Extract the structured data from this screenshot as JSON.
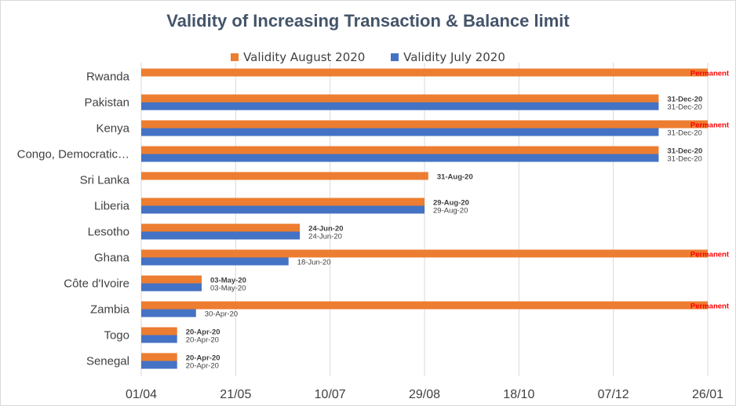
{
  "chart_data": {
    "type": "bar",
    "orientation": "horizontal",
    "title": "Validity of Increasing Transaction & Balance limit",
    "xlabel": "",
    "ylabel": "",
    "categories": [
      "Rwanda",
      "Pakistan",
      "Kenya",
      "Congo, Democratic…",
      "Sri Lanka",
      "Liberia",
      "Lesotho",
      "Ghana",
      "Côte d'Ivoire",
      "Zambia",
      "Togo",
      "Senegal"
    ],
    "x_axis": {
      "type": "date",
      "min": "2020-04-01",
      "max": "2021-01-26",
      "ticks": [
        "2020-04-01",
        "2020-05-21",
        "2020-07-10",
        "2020-08-29",
        "2020-10-18",
        "2020-12-07",
        "2021-01-26"
      ],
      "tick_labels": [
        "01/04",
        "21/05",
        "10/07",
        "29/08",
        "18/10",
        "07/12",
        "26/01"
      ],
      "grid": true
    },
    "legend_position": "top",
    "series": [
      {
        "name": "Validity August 2020",
        "color": "#ed7d31",
        "values": [
          "2021-01-26",
          "2020-12-31",
          "2021-01-26",
          "2020-12-31",
          "2020-08-31",
          "2020-08-29",
          "2020-06-24",
          "2021-01-26",
          "2020-05-03",
          "2021-01-26",
          "2020-04-20",
          "2020-04-20"
        ],
        "labels": [
          "Permanent",
          "31-Dec-20",
          "Permanent",
          "31-Dec-20",
          "31-Aug-20",
          "29-Aug-20",
          "24-Jun-20",
          "Permanent",
          "03-May-20",
          "Permanent",
          "20-Apr-20",
          "20-Apr-20"
        ]
      },
      {
        "name": "Validity July 2020",
        "color": "#4472c4",
        "values": [
          null,
          "2020-12-31",
          "2020-12-31",
          "2020-12-31",
          null,
          "2020-08-29",
          "2020-06-24",
          "2020-06-18",
          "2020-05-03",
          "2020-04-30",
          "2020-04-20",
          "2020-04-20"
        ],
        "labels": [
          null,
          "31-Dec-20",
          "31-Dec-20",
          "31-Dec-20",
          null,
          "29-Aug-20",
          "24-Jun-20",
          "18-Jun-20",
          "03-May-20",
          "30-Apr-20",
          "20-Apr-20",
          "20-Apr-20"
        ]
      }
    ],
    "permanent_label_color": "#ff0000"
  }
}
